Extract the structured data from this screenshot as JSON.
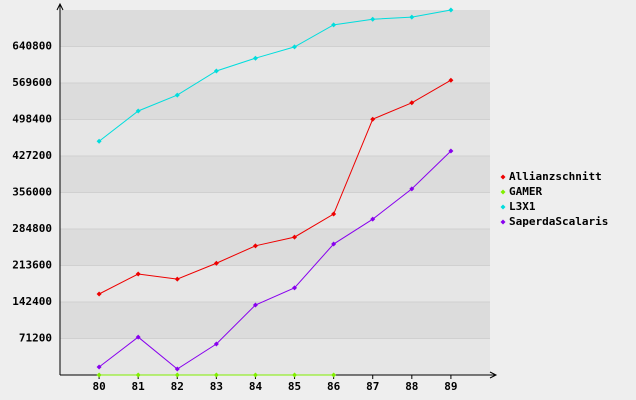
{
  "chart_data": {
    "type": "line",
    "categories": [
      "80",
      "81",
      "82",
      "83",
      "84",
      "85",
      "86",
      "87",
      "88",
      "89"
    ],
    "series": [
      {
        "name": "Allianzschnitt",
        "color": "#ee0000",
        "values": [
          158000,
          197000,
          187000,
          218000,
          252000,
          269000,
          314000,
          499000,
          531000,
          575000
        ]
      },
      {
        "name": "GAMER",
        "color": "#80ee00",
        "values": [
          0,
          0,
          0,
          0,
          0,
          0,
          0,
          null,
          null,
          null
        ]
      },
      {
        "name": "L3X1",
        "color": "#00dddd",
        "values": [
          456000,
          515000,
          546000,
          593000,
          618000,
          640000,
          683000,
          694000,
          698000,
          712000
        ]
      },
      {
        "name": "SaperdaScalaris",
        "color": "#8800ee",
        "values": [
          15600,
          74000,
          11700,
          60500,
          136500,
          170000,
          255500,
          304000,
          363000,
          437000
        ]
      }
    ],
    "ylim": [
      0,
      712000
    ],
    "yticks": [
      71200,
      142400,
      213600,
      284800,
      356000,
      427200,
      498400,
      569600,
      640800
    ],
    "grid": true
  }
}
